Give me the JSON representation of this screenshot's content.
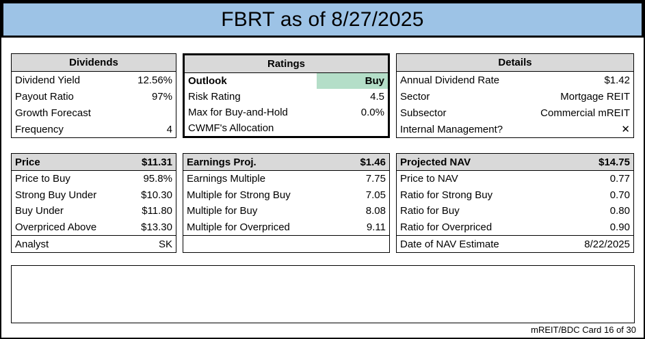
{
  "title": "FBRT as of 8/27/2025",
  "footer": "mREIT/BDC Card 16 of 30",
  "colors": {
    "title_bg": "#9DC3E6",
    "panel_header_bg": "#D9D9D9",
    "highlight_bg": "#B4DEC8",
    "border": "#000000"
  },
  "panels": {
    "dividends": {
      "header": "Dividends",
      "rows": [
        {
          "label": "Dividend Yield",
          "value": "12.56%"
        },
        {
          "label": "Payout Ratio",
          "value": "97%"
        },
        {
          "label": "Growth Forecast",
          "value": ""
        },
        {
          "label": "Frequency",
          "value": "4"
        }
      ]
    },
    "ratings": {
      "header": "Ratings",
      "rows": [
        {
          "label": "Outlook",
          "value": "Buy"
        },
        {
          "label": "Risk Rating",
          "value": "4.5"
        },
        {
          "label": "Max for Buy-and-Hold",
          "value": "0.0%"
        },
        {
          "label": "CWMF's Allocation",
          "value": ""
        }
      ]
    },
    "details": {
      "header": "Details",
      "rows": [
        {
          "label": "Annual Dividend Rate",
          "value": "$1.42"
        },
        {
          "label": "Sector",
          "value": "Mortgage REIT"
        },
        {
          "label": "Subsector",
          "value": "Commercial mREIT"
        },
        {
          "label": "Internal Management?",
          "value": "✕"
        }
      ]
    },
    "price": {
      "header_label": "Price",
      "header_value": "$11.31",
      "rows": [
        {
          "label": "Price to Buy",
          "value": "95.8%"
        },
        {
          "label": "Strong Buy Under",
          "value": "$10.30"
        },
        {
          "label": "Buy Under",
          "value": "$11.80"
        },
        {
          "label": "Overpriced Above",
          "value": "$13.30"
        }
      ],
      "footer_row": {
        "label": "Analyst",
        "value": "SK"
      }
    },
    "earnings": {
      "header_label": "Earnings Proj.",
      "header_value": "$1.46",
      "rows": [
        {
          "label": "Earnings Multiple",
          "value": "7.75"
        },
        {
          "label": "Multiple for Strong Buy",
          "value": "7.05"
        },
        {
          "label": "Multiple for Buy",
          "value": "8.08"
        },
        {
          "label": "Multiple for Overpriced",
          "value": "9.11"
        }
      ],
      "footer_row": {
        "label": "",
        "value": ""
      }
    },
    "projected_nav": {
      "header_label": "Projected NAV",
      "header_value": "$14.75",
      "rows": [
        {
          "label": "Price to NAV",
          "value": "0.77"
        },
        {
          "label": "Ratio for Strong Buy",
          "value": "0.70"
        },
        {
          "label": "Ratio for Buy",
          "value": "0.80"
        },
        {
          "label": "Ratio for Overpriced",
          "value": "0.90"
        }
      ],
      "footer_row": {
        "label": "Date of NAV Estimate",
        "value": "8/22/2025"
      }
    }
  },
  "notes": {
    "content": ""
  }
}
